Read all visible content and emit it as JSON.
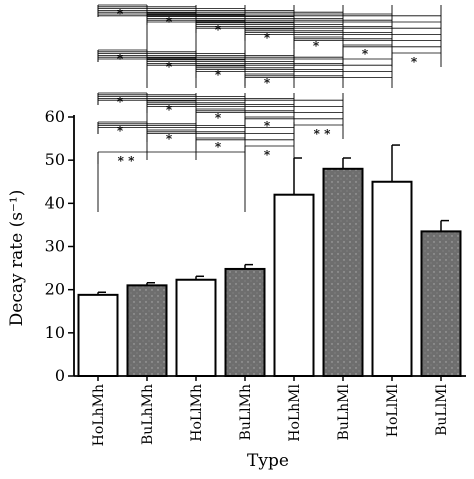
{
  "chart_data": {
    "type": "bar",
    "xlabel": "Type",
    "ylabel": "Decay rate (s⁻¹)",
    "ylim": [
      0,
      60
    ],
    "yticks": [
      0,
      10,
      20,
      30,
      40,
      50,
      60
    ],
    "grid": false,
    "categories": [
      "HoLhMh",
      "BuLhMh",
      "HoLlMh",
      "BuLlMh",
      "HoLhMl",
      "BuLhMl",
      "HoLlMl",
      "BuLlMl"
    ],
    "values": [
      18.8,
      21.0,
      22.3,
      24.8,
      42.0,
      48.0,
      45.0,
      33.5
    ],
    "errors": [
      0.6,
      0.6,
      0.8,
      1.0,
      8.5,
      2.5,
      8.5,
      2.5
    ],
    "fill": [
      "white",
      "gray",
      "white",
      "gray",
      "white",
      "gray",
      "white",
      "gray"
    ],
    "significance": [
      {
        "group": 1,
        "from": 0,
        "to": [
          1,
          2,
          3,
          4,
          5,
          6,
          7
        ],
        "label": "*"
      },
      {
        "group": 1,
        "from": 1,
        "to": [
          2,
          3,
          4,
          5,
          6,
          7
        ],
        "label": "*"
      },
      {
        "group": 1,
        "from": 2,
        "to": [
          3,
          4,
          5,
          6,
          7
        ],
        "label": "*"
      },
      {
        "group": 1,
        "from": 3,
        "to": [
          4,
          5,
          6,
          7
        ],
        "label": "*"
      },
      {
        "group": 1,
        "from": 4,
        "to": [
          5,
          6,
          7
        ],
        "label": "*"
      },
      {
        "group": 1,
        "from": 5,
        "to": [
          6,
          7
        ],
        "label": "*"
      },
      {
        "group": 1,
        "from": 6,
        "to": [
          7
        ],
        "label": "*"
      },
      {
        "group": 2,
        "from": 0,
        "to": [
          1,
          2,
          3,
          4,
          5,
          6
        ],
        "label": "*"
      },
      {
        "group": 2,
        "from": 1,
        "to": [
          2,
          3,
          4,
          5,
          6
        ],
        "label": "*"
      },
      {
        "group": 2,
        "from": 2,
        "to": [
          3,
          4,
          5,
          6
        ],
        "label": "*"
      },
      {
        "group": 2,
        "from": 3,
        "to": [
          4,
          5,
          6
        ],
        "label": "*"
      },
      {
        "group": 3,
        "from": 0,
        "to": [
          1,
          2,
          3,
          4,
          5
        ],
        "label": "*"
      },
      {
        "group": 3,
        "from": 1,
        "to": [
          2,
          3,
          4,
          5
        ],
        "label": "*"
      },
      {
        "group": 3,
        "from": 2,
        "to": [
          3,
          4,
          5
        ],
        "label": "*"
      },
      {
        "group": 3,
        "from": 3,
        "to": [
          4,
          5
        ],
        "label": "*"
      },
      {
        "group": 3,
        "from": 4,
        "to": [
          5
        ],
        "label": "* *"
      },
      {
        "group": 4,
        "from": 0,
        "to": [
          1,
          2,
          3,
          4
        ],
        "label": "*"
      },
      {
        "group": 4,
        "from": 1,
        "to": [
          2,
          3,
          4
        ],
        "label": "*"
      },
      {
        "group": 4,
        "from": 2,
        "to": [
          3,
          4
        ],
        "label": "*"
      },
      {
        "group": 4,
        "from": 3,
        "to": [
          4
        ],
        "label": "*"
      },
      {
        "group": 5,
        "from": 0,
        "to": [
          3
        ],
        "label": "* *"
      }
    ]
  }
}
